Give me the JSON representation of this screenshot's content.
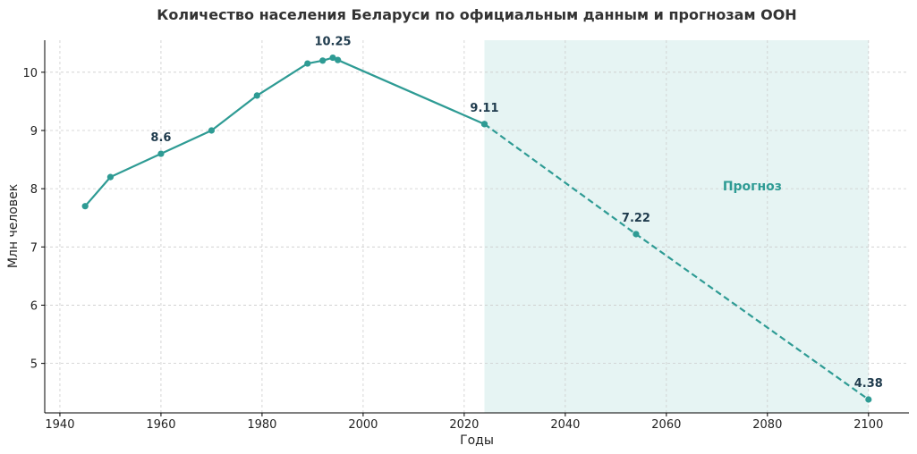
{
  "colors": {
    "series": "#2e9b94",
    "forecast_band": "#e6f4f3",
    "forecast_text": "#2e9b94"
  },
  "chart_data": {
    "type": "line",
    "title": "Количество населения Беларуси по официальным данным и прогнозам ООН",
    "xlabel": "Годы",
    "ylabel": "Млн человек",
    "xlim": [
      1937,
      2108
    ],
    "ylim": [
      4.15,
      10.55
    ],
    "xticks": [
      1940,
      1960,
      1980,
      2000,
      2020,
      2040,
      2060,
      2080,
      2100
    ],
    "yticks": [
      5,
      6,
      7,
      8,
      9,
      10
    ],
    "grid": true,
    "forecast_region": {
      "x_start": 2024,
      "x_end": 2100,
      "label": "Прогноз",
      "label_x": 2077,
      "label_y": 8.05
    },
    "series": [
      {
        "style": "solid",
        "x": [
          1945,
          1950,
          1960,
          1970,
          1979,
          1989,
          1992,
          1994,
          1995,
          2024
        ],
        "y": [
          7.7,
          8.2,
          8.6,
          9.0,
          9.6,
          10.15,
          10.2,
          10.25,
          10.21,
          9.11
        ]
      },
      {
        "style": "dashed",
        "x": [
          2024,
          2054,
          2100
        ],
        "y": [
          9.11,
          7.22,
          4.38
        ]
      }
    ],
    "annotations": [
      {
        "x": 1960,
        "y": 8.6,
        "text": "8.6"
      },
      {
        "x": 1994,
        "y": 10.25,
        "text": "10.25"
      },
      {
        "x": 2024,
        "y": 9.11,
        "text": "9.11"
      },
      {
        "x": 2054,
        "y": 7.22,
        "text": "7.22"
      },
      {
        "x": 2100,
        "y": 4.38,
        "text": "4.38"
      }
    ]
  }
}
